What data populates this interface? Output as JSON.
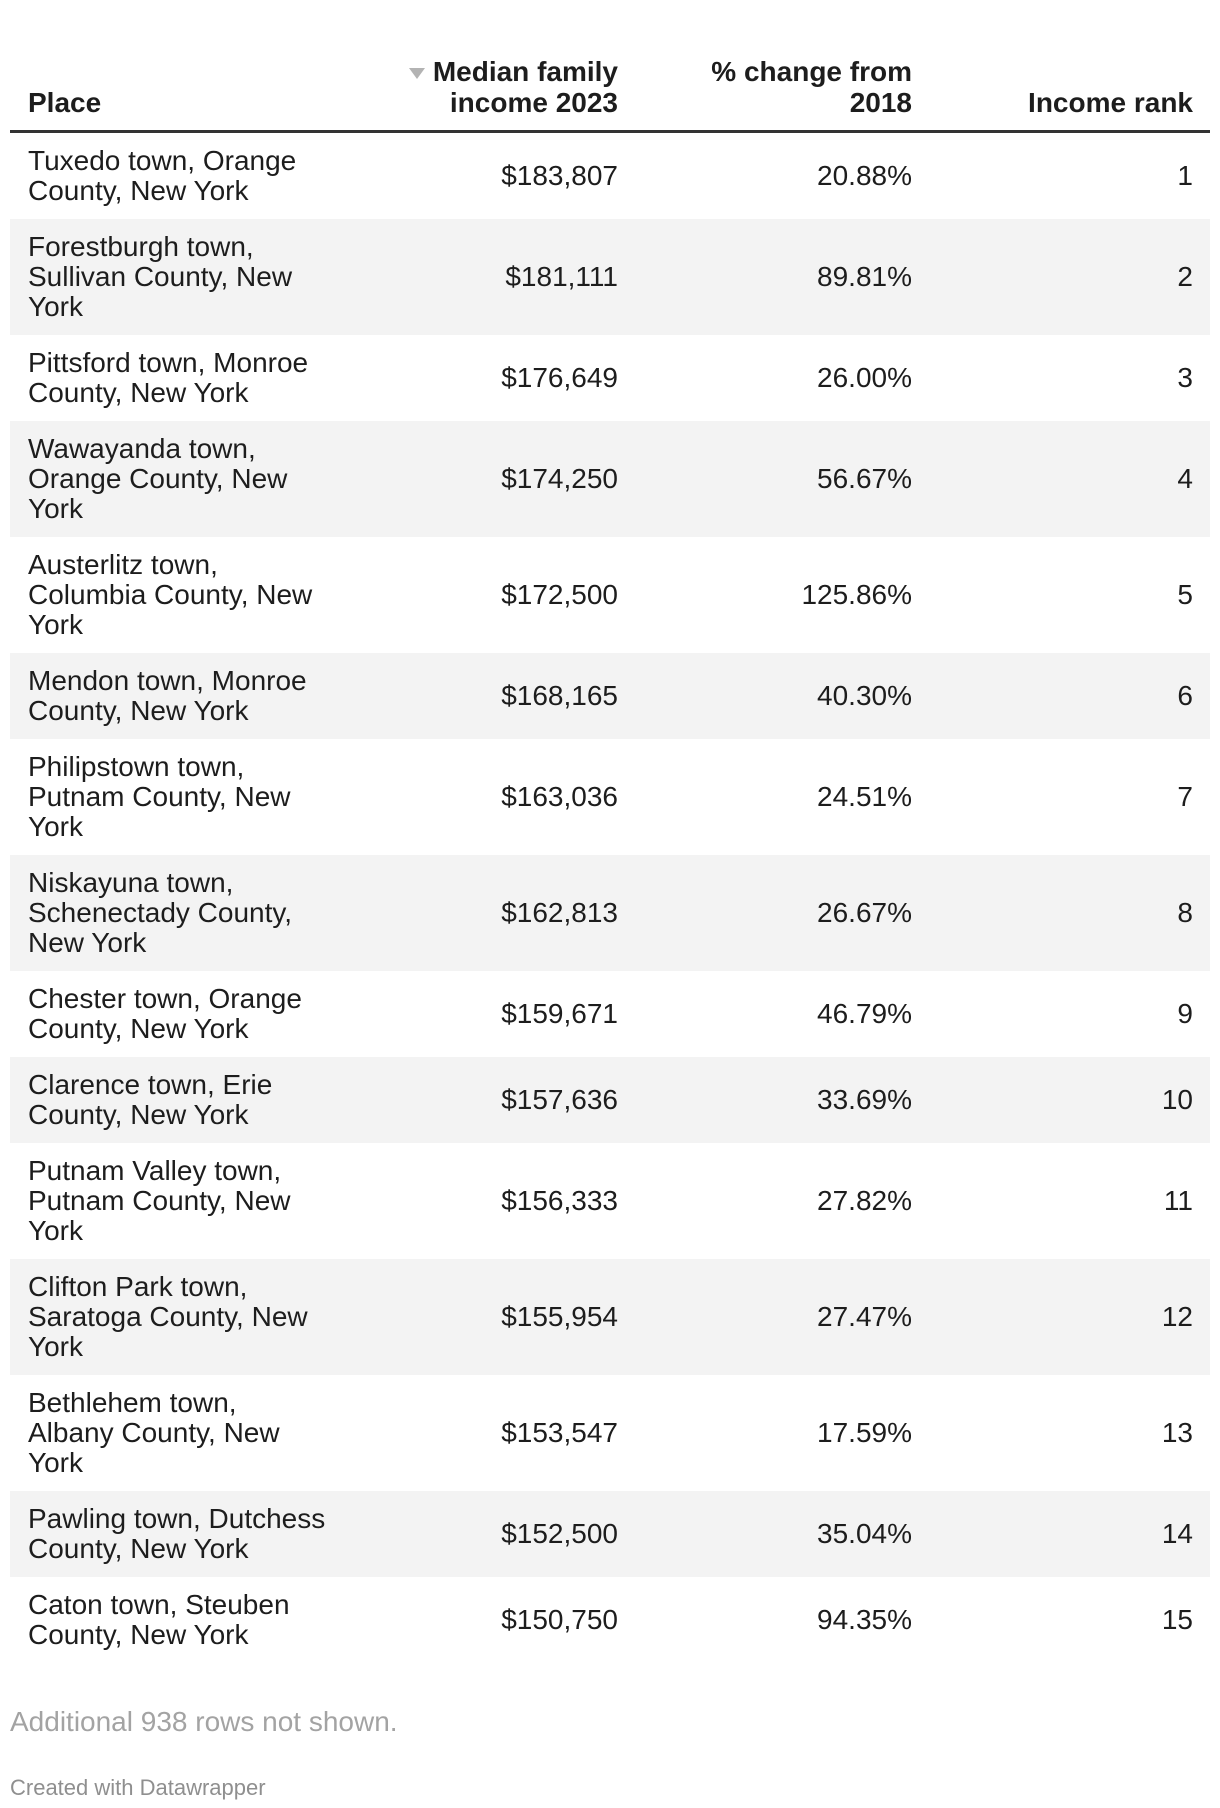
{
  "colors": {
    "header_border": "#333333",
    "stripe": "#f3f3f3",
    "text": "#1d1d1d",
    "muted_note": "#a3a3a3",
    "credit": "#8f8f8f",
    "sort_arrow": "#b3b3b3",
    "bg": "#ffffff"
  },
  "table": {
    "header": {
      "place": "Place",
      "income_line1": "Median family",
      "income_line2": "income 2023",
      "change_line1": "% change from",
      "change_line2": "2018",
      "rank": "Income rank",
      "sorted_column": "Median family income 2023",
      "sort_direction": "descending"
    },
    "rows": [
      {
        "place": "Tuxedo town, Orange\nCounty, New York",
        "income": "$183,807",
        "change": "20.88%",
        "rank": "1"
      },
      {
        "place": "Forestburgh town,\nSullivan County, New\nYork",
        "income": "$181,111",
        "change": "89.81%",
        "rank": "2"
      },
      {
        "place": "Pittsford town, Monroe\nCounty, New York",
        "income": "$176,649",
        "change": "26.00%",
        "rank": "3"
      },
      {
        "place": "Wawayanda town,\nOrange County, New\nYork",
        "income": "$174,250",
        "change": "56.67%",
        "rank": "4"
      },
      {
        "place": "Austerlitz town,\nColumbia County, New\nYork",
        "income": "$172,500",
        "change": "125.86%",
        "rank": "5"
      },
      {
        "place": "Mendon town, Monroe\nCounty, New York",
        "income": "$168,165",
        "change": "40.30%",
        "rank": "6"
      },
      {
        "place": "Philipstown town,\nPutnam County, New\nYork",
        "income": "$163,036",
        "change": "24.51%",
        "rank": "7"
      },
      {
        "place": "Niskayuna town,\nSchenectady County,\nNew York",
        "income": "$162,813",
        "change": "26.67%",
        "rank": "8"
      },
      {
        "place": "Chester town, Orange\nCounty, New York",
        "income": "$159,671",
        "change": "46.79%",
        "rank": "9"
      },
      {
        "place": "Clarence town, Erie\nCounty, New York",
        "income": "$157,636",
        "change": "33.69%",
        "rank": "10"
      },
      {
        "place": "Putnam Valley town,\nPutnam County, New\nYork",
        "income": "$156,333",
        "change": "27.82%",
        "rank": "11"
      },
      {
        "place": "Clifton Park town,\nSaratoga County, New\nYork",
        "income": "$155,954",
        "change": "27.47%",
        "rank": "12"
      },
      {
        "place": "Bethlehem town,\nAlbany County, New\nYork",
        "income": "$153,547",
        "change": "17.59%",
        "rank": "13"
      },
      {
        "place": "Pawling town, Dutchess\nCounty, New York",
        "income": "$152,500",
        "change": "35.04%",
        "rank": "14"
      },
      {
        "place": "Caton town, Steuben\nCounty, New York",
        "income": "$150,750",
        "change": "94.35%",
        "rank": "15"
      }
    ],
    "note": "Additional 938 rows not shown."
  },
  "footer": {
    "credit": "Created with Datawrapper"
  }
}
